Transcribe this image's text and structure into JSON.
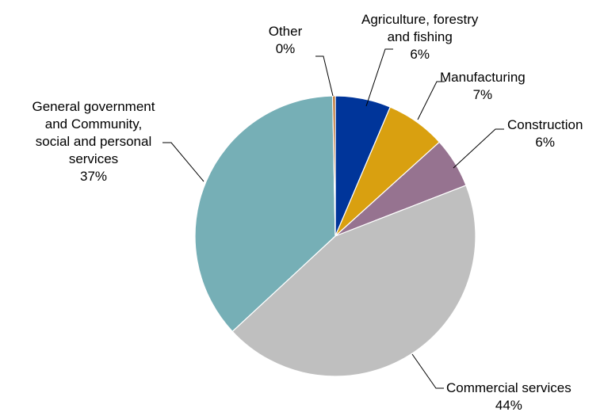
{
  "chart_data": {
    "type": "pie",
    "title": "",
    "start_angle_deg": 0,
    "direction": "clockwise",
    "slices": [
      {
        "name": "Agriculture, forestry and fishing",
        "value": 6.4,
        "label_lines": [
          "Agriculture, forestry",
          "and fishing"
        ],
        "pct_label": "6%",
        "color": "#00359a"
      },
      {
        "name": "Manufacturing",
        "value": 6.9,
        "label_lines": [
          "Manufacturing"
        ],
        "pct_label": "7%",
        "color": "#d9a010"
      },
      {
        "name": "Construction",
        "value": 5.8,
        "label_lines": [
          "Construction"
        ],
        "pct_label": "6%",
        "color": "#967390"
      },
      {
        "name": "Commercial services",
        "value": 44.0,
        "label_lines": [
          "Commercial services"
        ],
        "pct_label": "44%",
        "color": "#bfbfbf"
      },
      {
        "name": "General government and Community, social and personal services",
        "value": 36.6,
        "label_lines": [
          "General government",
          "and Community,",
          "social and personal",
          "services"
        ],
        "pct_label": "37%",
        "color": "#76afb6"
      },
      {
        "name": "Other",
        "value": 0.3,
        "label_lines": [
          "Other"
        ],
        "pct_label": "0%",
        "color": "#b5651d"
      }
    ]
  }
}
